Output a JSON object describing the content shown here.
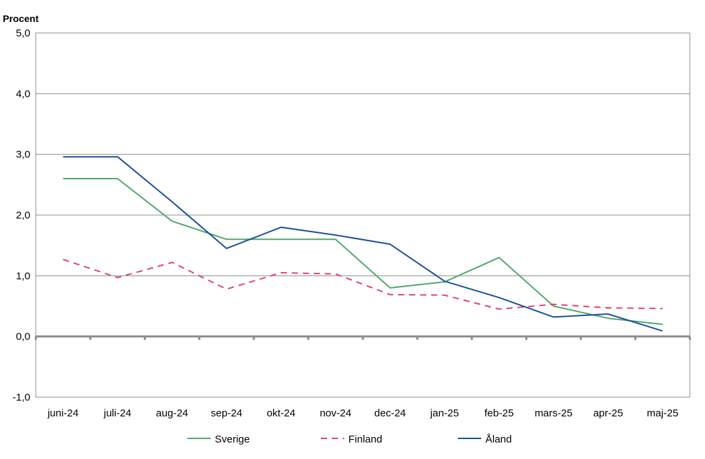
{
  "chart_data": {
    "type": "line",
    "ylabel": "Procent",
    "ylim": [
      -1.0,
      5.0
    ],
    "yticks": [
      "5,0",
      "4,0",
      "3,0",
      "2,0",
      "1,0",
      "0,0",
      "-1,0"
    ],
    "ytick_values": [
      5,
      4,
      3,
      2,
      1,
      0,
      -1
    ],
    "categories": [
      "juni-24",
      "juli-24",
      "aug-24",
      "sep-24",
      "okt-24",
      "nov-24",
      "dec-24",
      "jan-25",
      "feb-25",
      "mars-25",
      "apr-25",
      "maj-25"
    ],
    "grid": true,
    "legend_position": "bottom",
    "series": [
      {
        "name": "Sverige",
        "color": "#4ea86b",
        "dash": "solid",
        "values": [
          2.6,
          2.6,
          1.9,
          1.6,
          1.6,
          1.6,
          0.8,
          0.9,
          1.3,
          0.5,
          0.3,
          0.2
        ]
      },
      {
        "name": "Finland",
        "color": "#e0446e",
        "dash": "dashed",
        "values": [
          1.27,
          0.97,
          1.22,
          0.78,
          1.05,
          1.03,
          0.69,
          0.68,
          0.45,
          0.53,
          0.47,
          0.46
        ]
      },
      {
        "name": "Åland",
        "color": "#1a4f9c",
        "dash": "solid",
        "values": [
          2.96,
          2.96,
          2.22,
          1.45,
          1.8,
          1.67,
          1.52,
          0.91,
          0.64,
          0.32,
          0.37,
          0.09
        ]
      }
    ]
  }
}
